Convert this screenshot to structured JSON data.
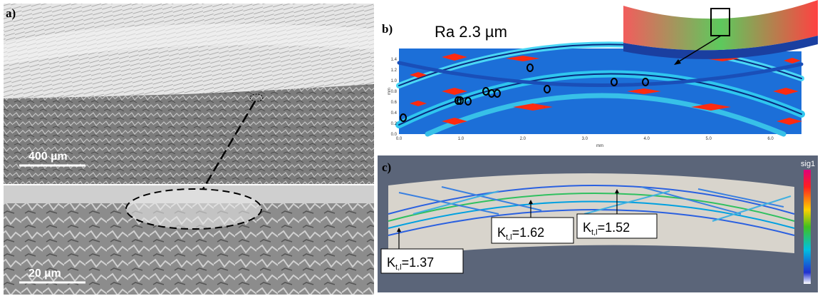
{
  "panel_a": {
    "label": "a)",
    "scale_top": "400 µm",
    "scale_bottom": "20 µm"
  },
  "panel_b": {
    "label": "b)",
    "roughness": "Ra 2.3 µm",
    "y_axis_label": "mm",
    "x_axis_label": "mm",
    "y_ticks": [
      "0.0",
      "0.2",
      "0.4",
      "0.6",
      "0.8",
      "1.0",
      "1.2",
      "1.4"
    ],
    "x_ticks": [
      "0.0",
      "1.0",
      "2.0",
      "3.0",
      "4.0",
      "5.0",
      "6.0"
    ]
  },
  "panel_c": {
    "label": "c)",
    "colorbar_label": "sig1",
    "annotations": [
      {
        "symbol": "K",
        "subscript": "t,l",
        "value": "=1.62"
      },
      {
        "symbol": "K",
        "subscript": "t,l",
        "value": "=1.52"
      },
      {
        "symbol": "K",
        "subscript": "t,l",
        "value": "=1.37"
      }
    ]
  }
}
